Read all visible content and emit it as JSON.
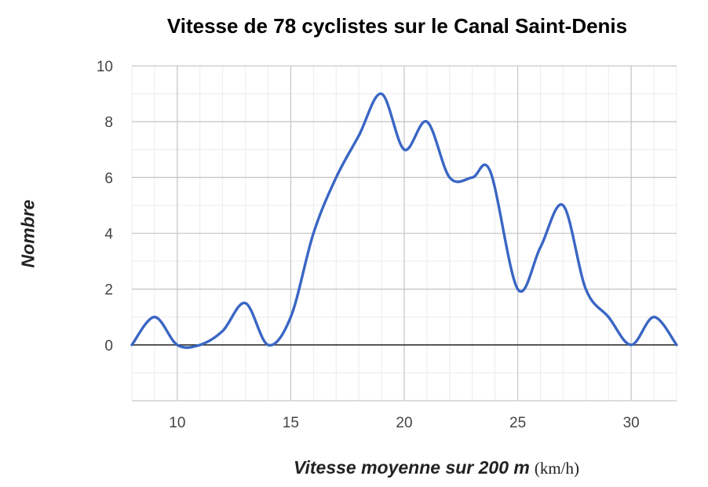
{
  "chart_data": {
    "type": "line",
    "title": "Vitesse de 78 cyclistes sur le Canal Saint-Denis",
    "xlabel": "Vitesse moyenne sur 200 m",
    "xlabel_unit": "(km/h)",
    "ylabel": "Nombre",
    "xlim": [
      8,
      32
    ],
    "ylim": [
      -2,
      10
    ],
    "x_ticks": [
      10,
      15,
      20,
      25,
      30
    ],
    "y_ticks": [
      0,
      2,
      4,
      6,
      8,
      10
    ],
    "x_minor_step": 1,
    "y_minor_step": 1,
    "grid": true,
    "line_color": "#3a66c4",
    "series": [
      {
        "x": [
          8,
          9,
          10,
          11,
          12,
          13,
          14,
          15,
          16,
          17,
          18,
          19,
          20,
          21,
          22,
          23,
          23.8,
          25,
          26,
          27,
          28,
          29,
          30,
          31,
          32
        ],
        "y": [
          0,
          1,
          0,
          0,
          0.5,
          1.5,
          0,
          1,
          4,
          6,
          7.5,
          9,
          7,
          8,
          6,
          6,
          6.2,
          2,
          3.5,
          5,
          2,
          1,
          0,
          1,
          0
        ]
      }
    ]
  }
}
